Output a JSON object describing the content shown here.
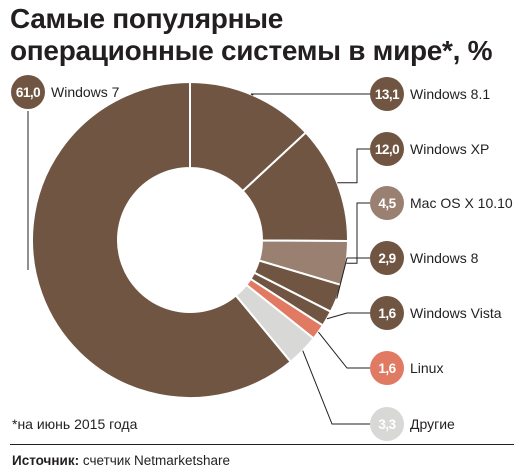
{
  "title_lines": [
    "Самые популярные",
    "операционные системы в мире*, %"
  ],
  "footnote": "*на июнь 2015 года",
  "source": {
    "label": "Источник:",
    "text": "счетчик Netmarketshare"
  },
  "colors": {
    "brown": "#705642",
    "tan": "#9a8070",
    "salmon": "#e07a62",
    "light_gray": "#d8d8d6",
    "text": "#231f20"
  },
  "chart_data": {
    "type": "pie",
    "donut": true,
    "unit": "%",
    "title": "Самые популярные операционные системы в мире*, %",
    "categories": [
      "Windows 7",
      "Windows 8.1",
      "Windows XP",
      "Mac OS X 10.10",
      "Windows 8",
      "Windows Vista",
      "Linux",
      "Другие"
    ],
    "values": [
      61.0,
      13.1,
      12.0,
      4.5,
      2.9,
      1.6,
      1.6,
      3.3
    ],
    "value_labels": [
      "61,0",
      "13,1",
      "12,0",
      "4,5",
      "2,9",
      "1,6",
      "1,6",
      "3,3"
    ],
    "slice_colors": [
      "#705642",
      "#705642",
      "#705642",
      "#9a8070",
      "#705642",
      "#705642",
      "#e07a62",
      "#d8d8d6"
    ],
    "legend": "callouts on the right and top-left"
  }
}
